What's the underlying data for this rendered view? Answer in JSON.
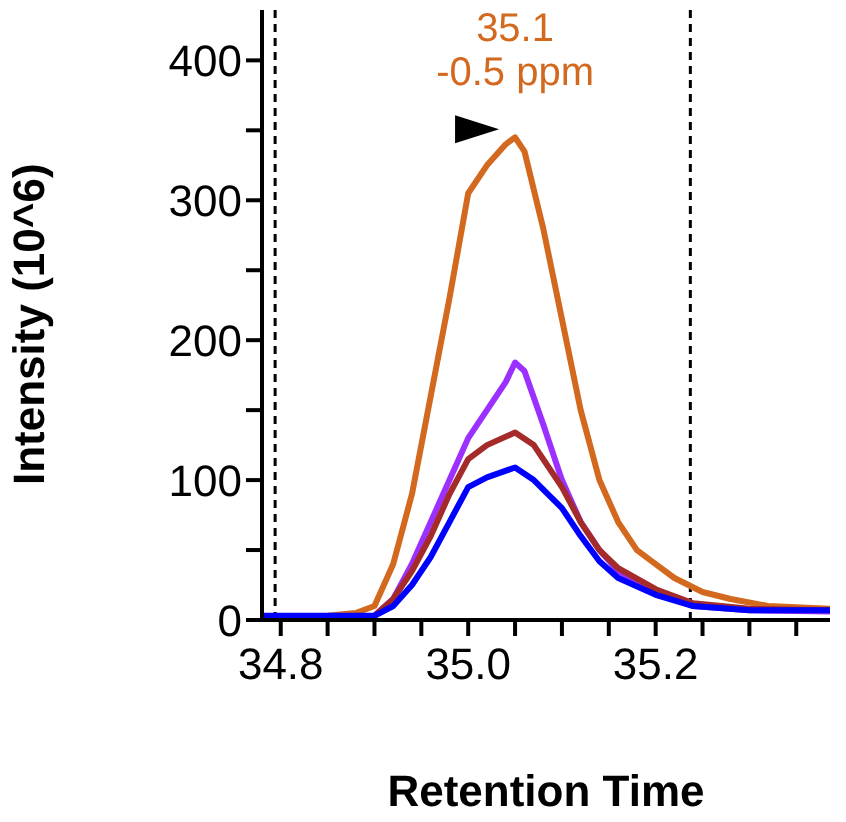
{
  "chart_data": {
    "type": "line",
    "xlabel": "Retention Time",
    "ylabel": "Intensity (10^6)",
    "xlim": [
      34.78,
      35.386
    ],
    "ylim": [
      0,
      436
    ],
    "xticks": [
      {
        "value": 34.8,
        "label": "34.8"
      },
      {
        "value": 34.85,
        "label": null
      },
      {
        "value": 34.9,
        "label": null
      },
      {
        "value": 34.95,
        "label": null
      },
      {
        "value": 35.0,
        "label": "35.0"
      },
      {
        "value": 35.05,
        "label": null
      },
      {
        "value": 35.1,
        "label": null
      },
      {
        "value": 35.15,
        "label": null
      },
      {
        "value": 35.2,
        "label": "35.2"
      },
      {
        "value": 35.25,
        "label": null
      },
      {
        "value": 35.3,
        "label": null
      },
      {
        "value": 35.35,
        "label": null
      }
    ],
    "yticks": [
      0,
      {
        "value": 50,
        "label": null
      },
      100,
      {
        "value": 150,
        "label": null
      },
      200,
      {
        "value": 250,
        "label": null
      },
      300,
      {
        "value": 350,
        "label": null
      },
      400
    ],
    "grid": false,
    "legend": false,
    "marker": "none",
    "line_style": "solid",
    "series": [
      {
        "color": "#d2691e",
        "x": [
          34.78,
          34.85,
          34.88,
          34.9,
          34.92,
          34.94,
          34.96,
          34.98,
          35.0,
          35.02,
          35.04,
          35.05,
          35.06,
          35.08,
          35.1,
          35.12,
          35.14,
          35.16,
          35.18,
          35.2,
          35.22,
          35.25,
          35.28,
          35.32,
          35.386
        ],
        "values": [
          2,
          3,
          5,
          10,
          40,
          90,
          160,
          230,
          305,
          325,
          340,
          345,
          335,
          280,
          215,
          150,
          100,
          70,
          50,
          40,
          30,
          20,
          15,
          10,
          8
        ]
      },
      {
        "color": "#9b30ff",
        "x": [
          34.78,
          34.9,
          34.92,
          34.94,
          34.96,
          34.98,
          35.0,
          35.02,
          35.04,
          35.05,
          35.06,
          35.08,
          35.1,
          35.12,
          35.14,
          35.16,
          35.2,
          35.24,
          35.3,
          35.386
        ],
        "values": [
          2,
          3,
          15,
          40,
          70,
          100,
          130,
          150,
          170,
          184,
          178,
          140,
          100,
          70,
          50,
          35,
          20,
          10,
          7,
          6
        ]
      },
      {
        "color": "#a52a2a",
        "x": [
          34.78,
          34.9,
          34.92,
          34.94,
          34.96,
          34.98,
          35.0,
          35.02,
          35.05,
          35.07,
          35.1,
          35.12,
          35.14,
          35.16,
          35.2,
          35.24,
          35.3,
          35.386
        ],
        "values": [
          2,
          3,
          15,
          35,
          60,
          90,
          115,
          125,
          134,
          125,
          95,
          70,
          50,
          37,
          22,
          12,
          8,
          7
        ]
      },
      {
        "color": "#0000ff",
        "x": [
          34.78,
          34.9,
          34.92,
          34.94,
          34.96,
          34.98,
          35.0,
          35.02,
          35.05,
          35.07,
          35.1,
          35.12,
          35.14,
          35.16,
          35.2,
          35.24,
          35.3,
          35.386
        ],
        "values": [
          3,
          3,
          10,
          25,
          45,
          70,
          95,
          102,
          109,
          100,
          80,
          60,
          42,
          30,
          18,
          10,
          7,
          7
        ]
      }
    ],
    "ref_lines": [
      {
        "axis": "x",
        "value": 34.794,
        "color": "#000000",
        "line_style": "dashed"
      },
      {
        "axis": "x",
        "value": 35.237,
        "color": "#000000",
        "line_style": "dashed"
      }
    ],
    "annotations": [
      {
        "text": "35.1\n-0.5 ppm",
        "x": 35.05,
        "y": 345
      }
    ]
  }
}
